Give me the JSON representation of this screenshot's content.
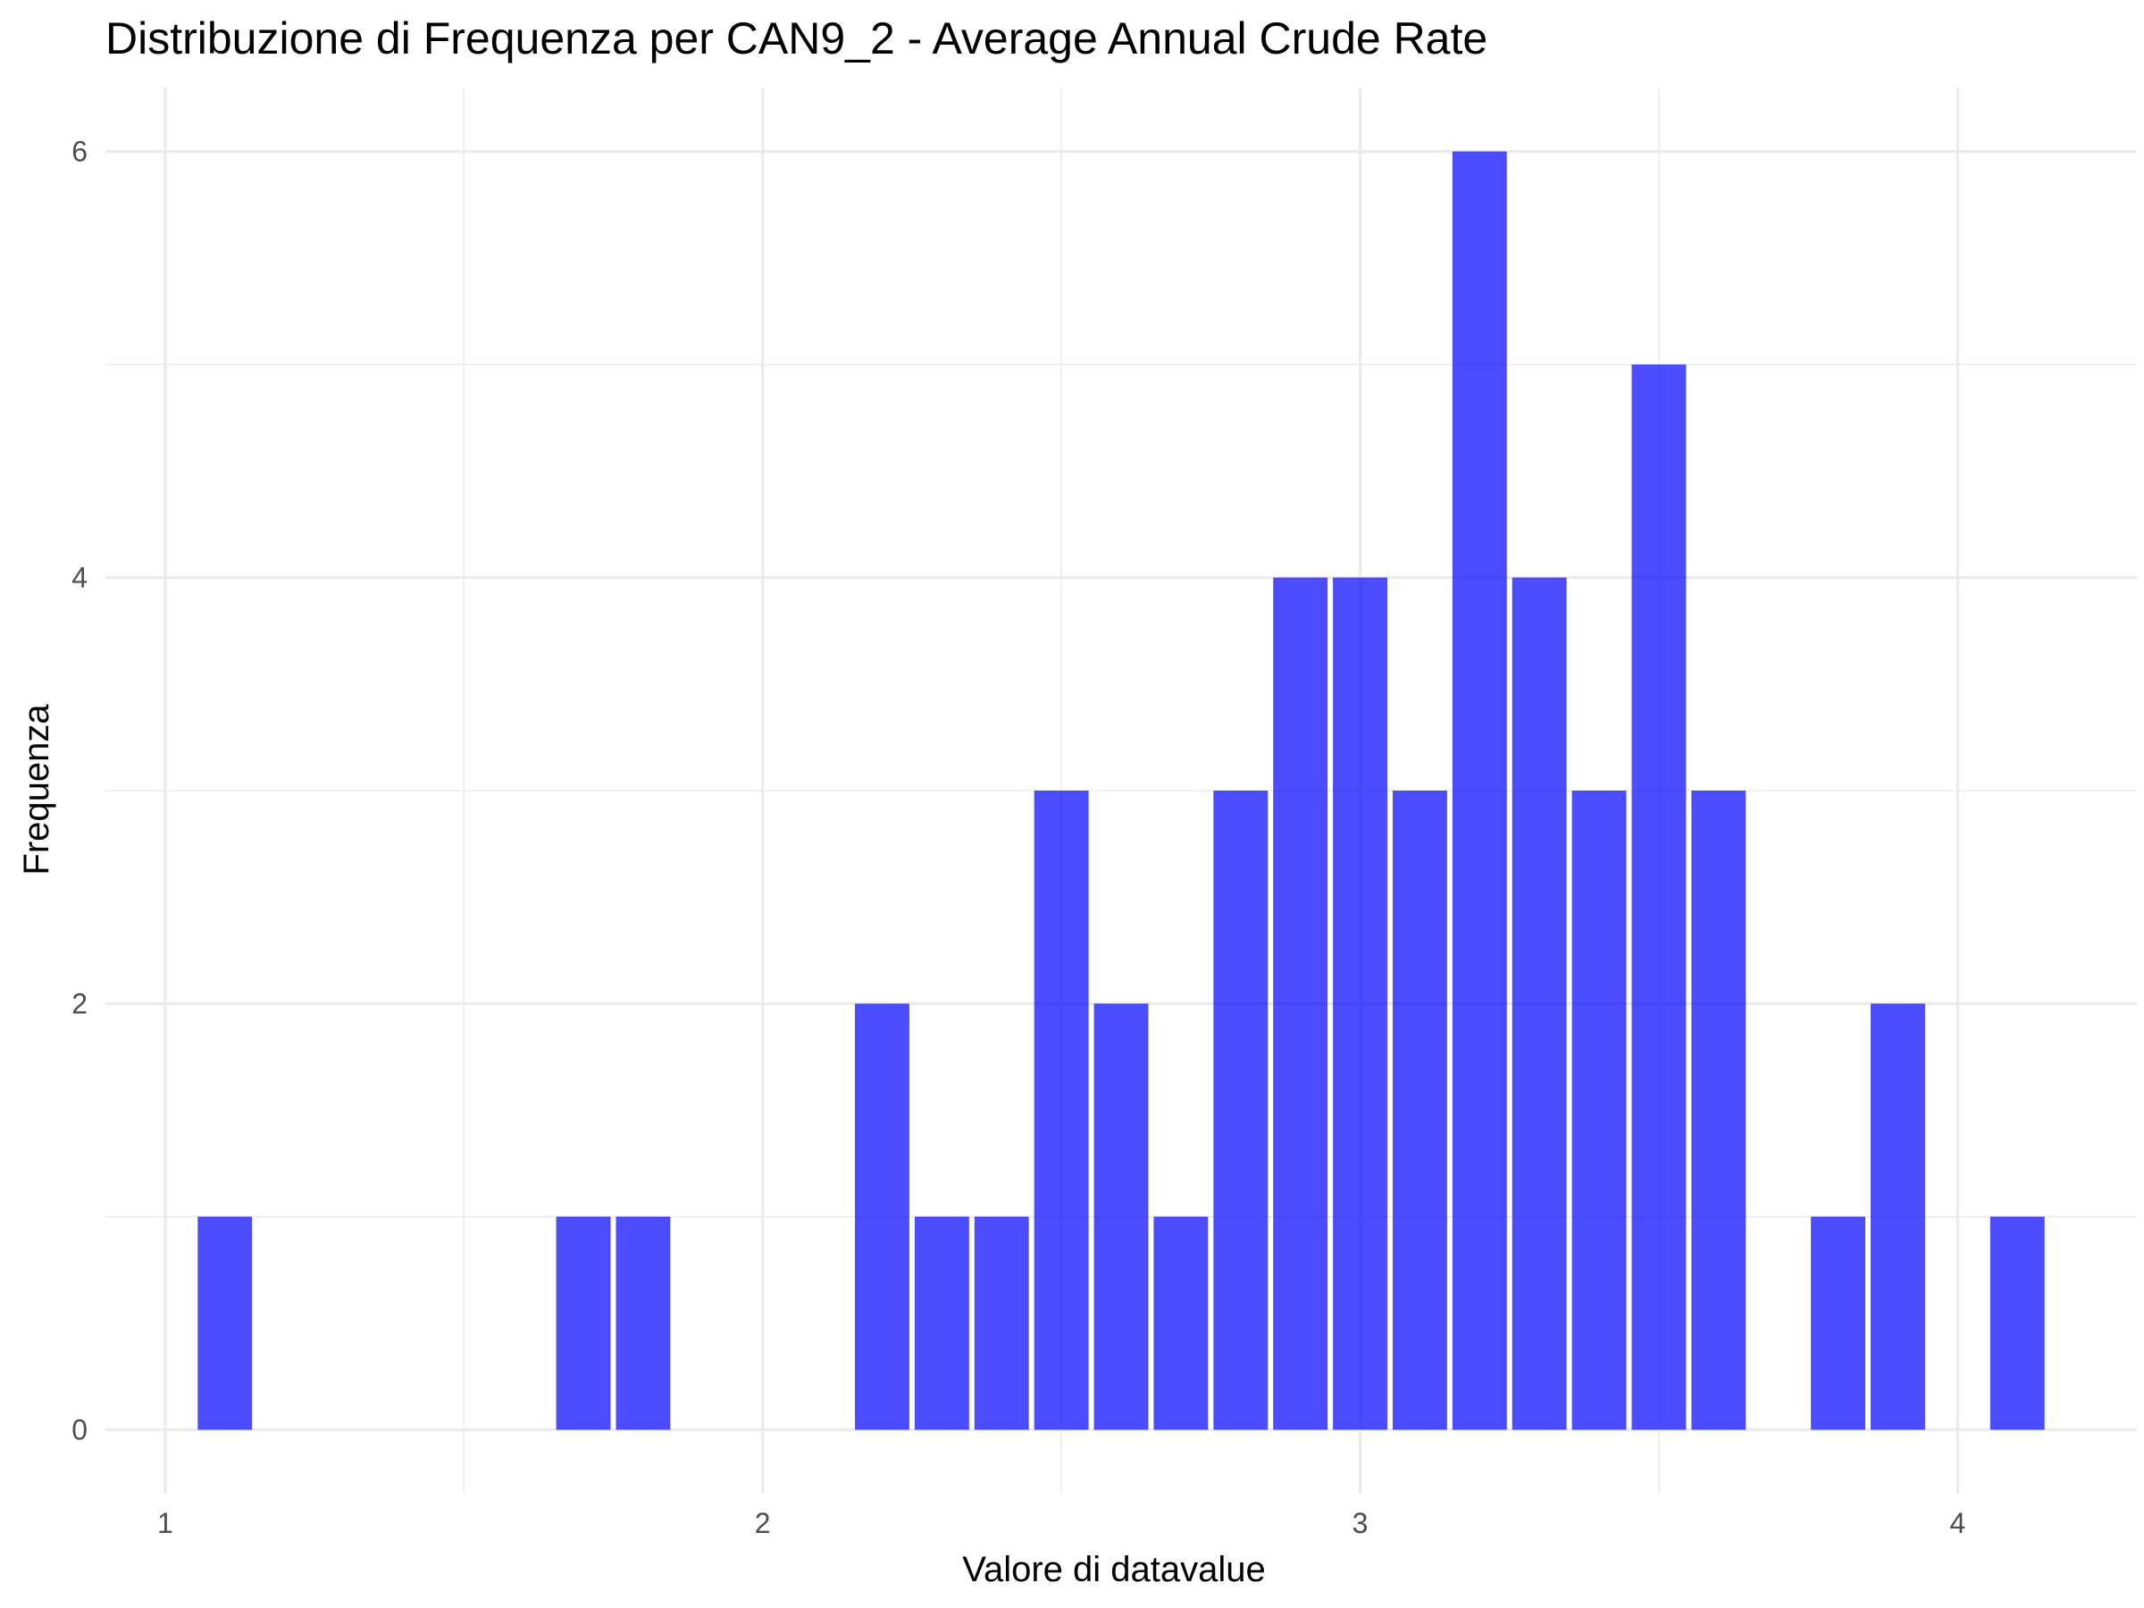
{
  "chart_data": {
    "type": "bar",
    "title": "Distribuzione di Frequenza per CAN9_2 - Average Annual Crude Rate",
    "xlabel": "Valore di datavalue",
    "ylabel": "Frequenza",
    "bar_color": "#0000ff",
    "bar_opacity": 0.7,
    "grid": true,
    "legend": "none",
    "xlim": [
      0.9,
      4.3
    ],
    "ylim": [
      -0.3,
      6.3
    ],
    "x_ticks": [
      1,
      2,
      3,
      4
    ],
    "y_ticks": [
      0,
      2,
      4,
      6
    ],
    "bin_width": 0.1,
    "x": [
      1.1,
      1.7,
      1.8,
      2.2,
      2.3,
      2.4,
      2.5,
      2.6,
      2.7,
      2.8,
      2.9,
      3.0,
      3.1,
      3.2,
      3.3,
      3.4,
      3.5,
      3.6,
      3.8,
      3.9,
      4.1
    ],
    "values": [
      1,
      1,
      1,
      2,
      1,
      1,
      3,
      2,
      1,
      3,
      4,
      4,
      3,
      6,
      4,
      3,
      5,
      3,
      1,
      2,
      1
    ]
  }
}
